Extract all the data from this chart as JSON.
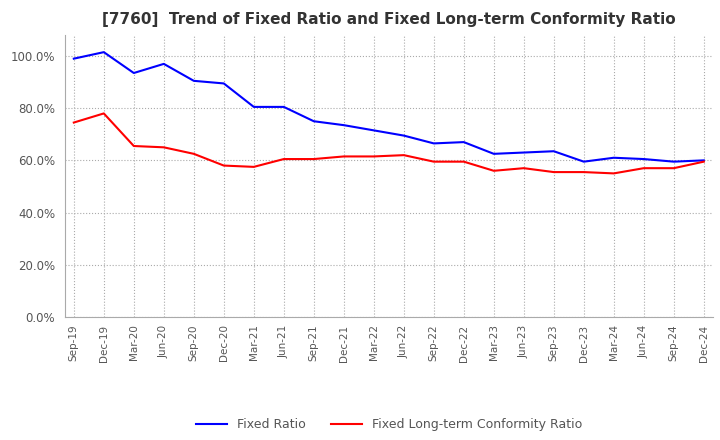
{
  "title": "[7760]  Trend of Fixed Ratio and Fixed Long-term Conformity Ratio",
  "title_fontsize": 11,
  "x_labels": [
    "Sep-19",
    "Dec-19",
    "Mar-20",
    "Jun-20",
    "Sep-20",
    "Dec-20",
    "Mar-21",
    "Jun-21",
    "Sep-21",
    "Dec-21",
    "Mar-22",
    "Jun-22",
    "Sep-22",
    "Dec-22",
    "Mar-23",
    "Jun-23",
    "Sep-23",
    "Dec-23",
    "Mar-24",
    "Jun-24",
    "Sep-24",
    "Dec-24"
  ],
  "fixed_ratio": [
    99.0,
    101.5,
    93.5,
    97.0,
    90.5,
    89.5,
    80.5,
    80.5,
    75.0,
    73.5,
    71.5,
    69.5,
    66.5,
    67.0,
    62.5,
    63.0,
    63.5,
    59.5,
    61.0,
    60.5,
    59.5,
    60.0
  ],
  "fixed_lt_ratio": [
    74.5,
    78.0,
    65.5,
    65.0,
    62.5,
    58.0,
    57.5,
    60.5,
    60.5,
    61.5,
    61.5,
    62.0,
    59.5,
    59.5,
    56.0,
    57.0,
    55.5,
    55.5,
    55.0,
    57.0,
    57.0,
    59.5
  ],
  "fixed_ratio_color": "#0000FF",
  "fixed_lt_ratio_color": "#FF0000",
  "ylim": [
    0.0,
    108.0
  ],
  "yticks": [
    0.0,
    20.0,
    40.0,
    60.0,
    80.0,
    100.0
  ],
  "background_color": "#ffffff",
  "grid_color": "#aaaaaa",
  "legend_labels": [
    "Fixed Ratio",
    "Fixed Long-term Conformity Ratio"
  ]
}
